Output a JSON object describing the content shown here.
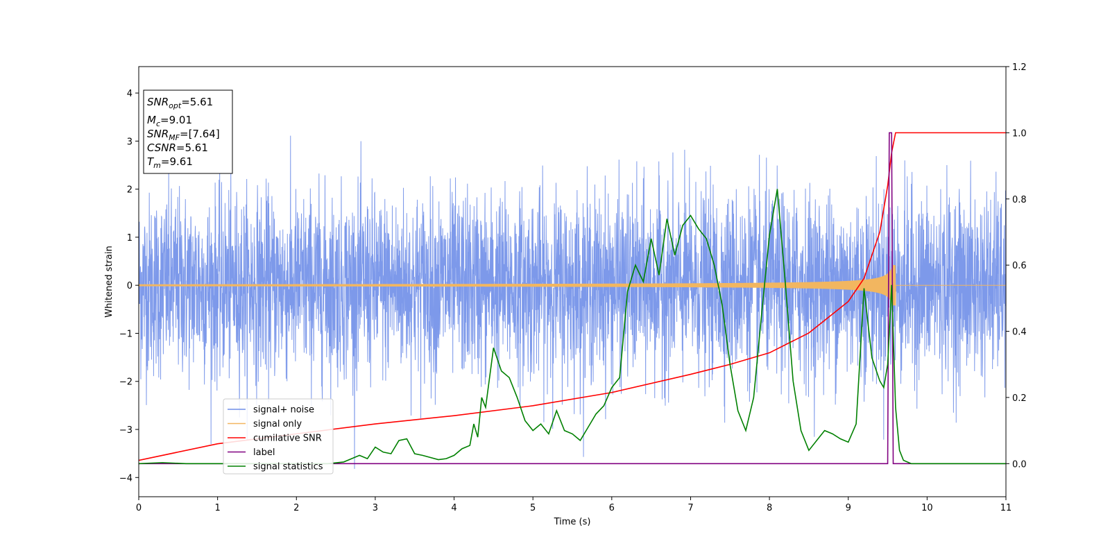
{
  "chart_data": {
    "type": "line",
    "xlabel": "Time (s)",
    "ylabel": "Whitened strain",
    "xlim": [
      0,
      11
    ],
    "ylim": [
      -4.4,
      4.55
    ],
    "y2lim": [
      -0.1,
      1.2
    ],
    "x_ticks": [
      "0",
      "1",
      "2",
      "3",
      "4",
      "5",
      "6",
      "7",
      "8",
      "9",
      "10",
      "11"
    ],
    "y_ticks": [
      "−4",
      "−3",
      "−2",
      "−1",
      "0",
      "1",
      "2",
      "3",
      "4"
    ],
    "y2_ticks": [
      "0.0",
      "0.2",
      "0.4",
      "0.6",
      "0.8",
      "1.0",
      "1.2"
    ],
    "grid": false,
    "legend_position": "lower-left",
    "annotation_box": [
      {
        "base": "SNR",
        "sub": "opt",
        "value": "=5.61"
      },
      {
        "base": "M",
        "sub": "c",
        "value": "=9.01"
      },
      {
        "base": "SNR",
        "sub": "MF",
        "value": "=[7.64]"
      },
      {
        "base": "CSNR",
        "sub": "",
        "value": "=5.61"
      },
      {
        "base": "T",
        "sub": "m",
        "value": "=9.61"
      }
    ],
    "series": [
      {
        "name": "signal+ noise",
        "color": "#6f8ee8",
        "axis": "left",
        "kind": "noise",
        "sigma": 0.95,
        "spike_max": 4.15,
        "spike_min": -3.9,
        "x_range": [
          0,
          11
        ]
      },
      {
        "name": "signal only",
        "color": "#f2b660",
        "axis": "left",
        "kind": "chirp",
        "amplitude_start": 0.02,
        "amplitude_peak": 0.42,
        "merger_time": 9.6,
        "x_range": [
          0,
          11
        ]
      },
      {
        "name": "cumilative SNR",
        "color": "#ff0000",
        "axis": "right",
        "points": [
          [
            0,
            0.01
          ],
          [
            1,
            0.06
          ],
          [
            2,
            0.09
          ],
          [
            3,
            0.12
          ],
          [
            4,
            0.145
          ],
          [
            5,
            0.175
          ],
          [
            6,
            0.215
          ],
          [
            7,
            0.27
          ],
          [
            7.5,
            0.3
          ],
          [
            8,
            0.335
          ],
          [
            8.5,
            0.395
          ],
          [
            9,
            0.49
          ],
          [
            9.2,
            0.56
          ],
          [
            9.4,
            0.7
          ],
          [
            9.5,
            0.84
          ],
          [
            9.55,
            0.94
          ],
          [
            9.6,
            1.0
          ],
          [
            11,
            1.0
          ]
        ]
      },
      {
        "name": "label",
        "color": "#800080",
        "axis": "right",
        "points": [
          [
            0,
            0.0
          ],
          [
            9.5,
            0.0
          ],
          [
            9.52,
            1.0
          ],
          [
            9.55,
            1.0
          ],
          [
            9.57,
            0.0
          ],
          [
            11,
            0.0
          ]
        ]
      },
      {
        "name": "signal statistics",
        "color": "#008000",
        "axis": "right",
        "points": [
          [
            0,
            0.0
          ],
          [
            0.3,
            0.003
          ],
          [
            0.6,
            0.0
          ],
          [
            1,
            0.0
          ],
          [
            2,
            0.0
          ],
          [
            2.4,
            0.0
          ],
          [
            2.6,
            0.005
          ],
          [
            2.8,
            0.025
          ],
          [
            2.9,
            0.015
          ],
          [
            3.0,
            0.05
          ],
          [
            3.1,
            0.035
          ],
          [
            3.2,
            0.03
          ],
          [
            3.3,
            0.07
          ],
          [
            3.4,
            0.075
          ],
          [
            3.5,
            0.03
          ],
          [
            3.6,
            0.025
          ],
          [
            3.8,
            0.012
          ],
          [
            3.9,
            0.015
          ],
          [
            4.0,
            0.025
          ],
          [
            4.1,
            0.045
          ],
          [
            4.2,
            0.055
          ],
          [
            4.25,
            0.12
          ],
          [
            4.3,
            0.08
          ],
          [
            4.35,
            0.2
          ],
          [
            4.4,
            0.17
          ],
          [
            4.5,
            0.35
          ],
          [
            4.6,
            0.28
          ],
          [
            4.7,
            0.26
          ],
          [
            4.8,
            0.2
          ],
          [
            4.9,
            0.13
          ],
          [
            5.0,
            0.1
          ],
          [
            5.1,
            0.12
          ],
          [
            5.2,
            0.09
          ],
          [
            5.3,
            0.16
          ],
          [
            5.4,
            0.1
          ],
          [
            5.5,
            0.09
          ],
          [
            5.6,
            0.07
          ],
          [
            5.7,
            0.11
          ],
          [
            5.8,
            0.15
          ],
          [
            5.9,
            0.175
          ],
          [
            6.0,
            0.23
          ],
          [
            6.1,
            0.26
          ],
          [
            6.2,
            0.52
          ],
          [
            6.3,
            0.6
          ],
          [
            6.4,
            0.55
          ],
          [
            6.5,
            0.68
          ],
          [
            6.6,
            0.57
          ],
          [
            6.7,
            0.74
          ],
          [
            6.8,
            0.63
          ],
          [
            6.9,
            0.72
          ],
          [
            7.0,
            0.75
          ],
          [
            7.1,
            0.71
          ],
          [
            7.2,
            0.68
          ],
          [
            7.3,
            0.6
          ],
          [
            7.4,
            0.48
          ],
          [
            7.5,
            0.3
          ],
          [
            7.6,
            0.16
          ],
          [
            7.7,
            0.1
          ],
          [
            7.8,
            0.2
          ],
          [
            7.9,
            0.45
          ],
          [
            8.0,
            0.69
          ],
          [
            8.1,
            0.83
          ],
          [
            8.2,
            0.55
          ],
          [
            8.3,
            0.25
          ],
          [
            8.4,
            0.1
          ],
          [
            8.5,
            0.04
          ],
          [
            8.6,
            0.07
          ],
          [
            8.7,
            0.1
          ],
          [
            8.8,
            0.09
          ],
          [
            8.9,
            0.075
          ],
          [
            9.0,
            0.065
          ],
          [
            9.1,
            0.12
          ],
          [
            9.2,
            0.53
          ],
          [
            9.3,
            0.32
          ],
          [
            9.4,
            0.25
          ],
          [
            9.45,
            0.23
          ],
          [
            9.5,
            0.3
          ],
          [
            9.55,
            0.54
          ],
          [
            9.6,
            0.17
          ],
          [
            9.65,
            0.04
          ],
          [
            9.7,
            0.01
          ],
          [
            9.8,
            0.0
          ],
          [
            11,
            0.0
          ]
        ]
      }
    ]
  }
}
